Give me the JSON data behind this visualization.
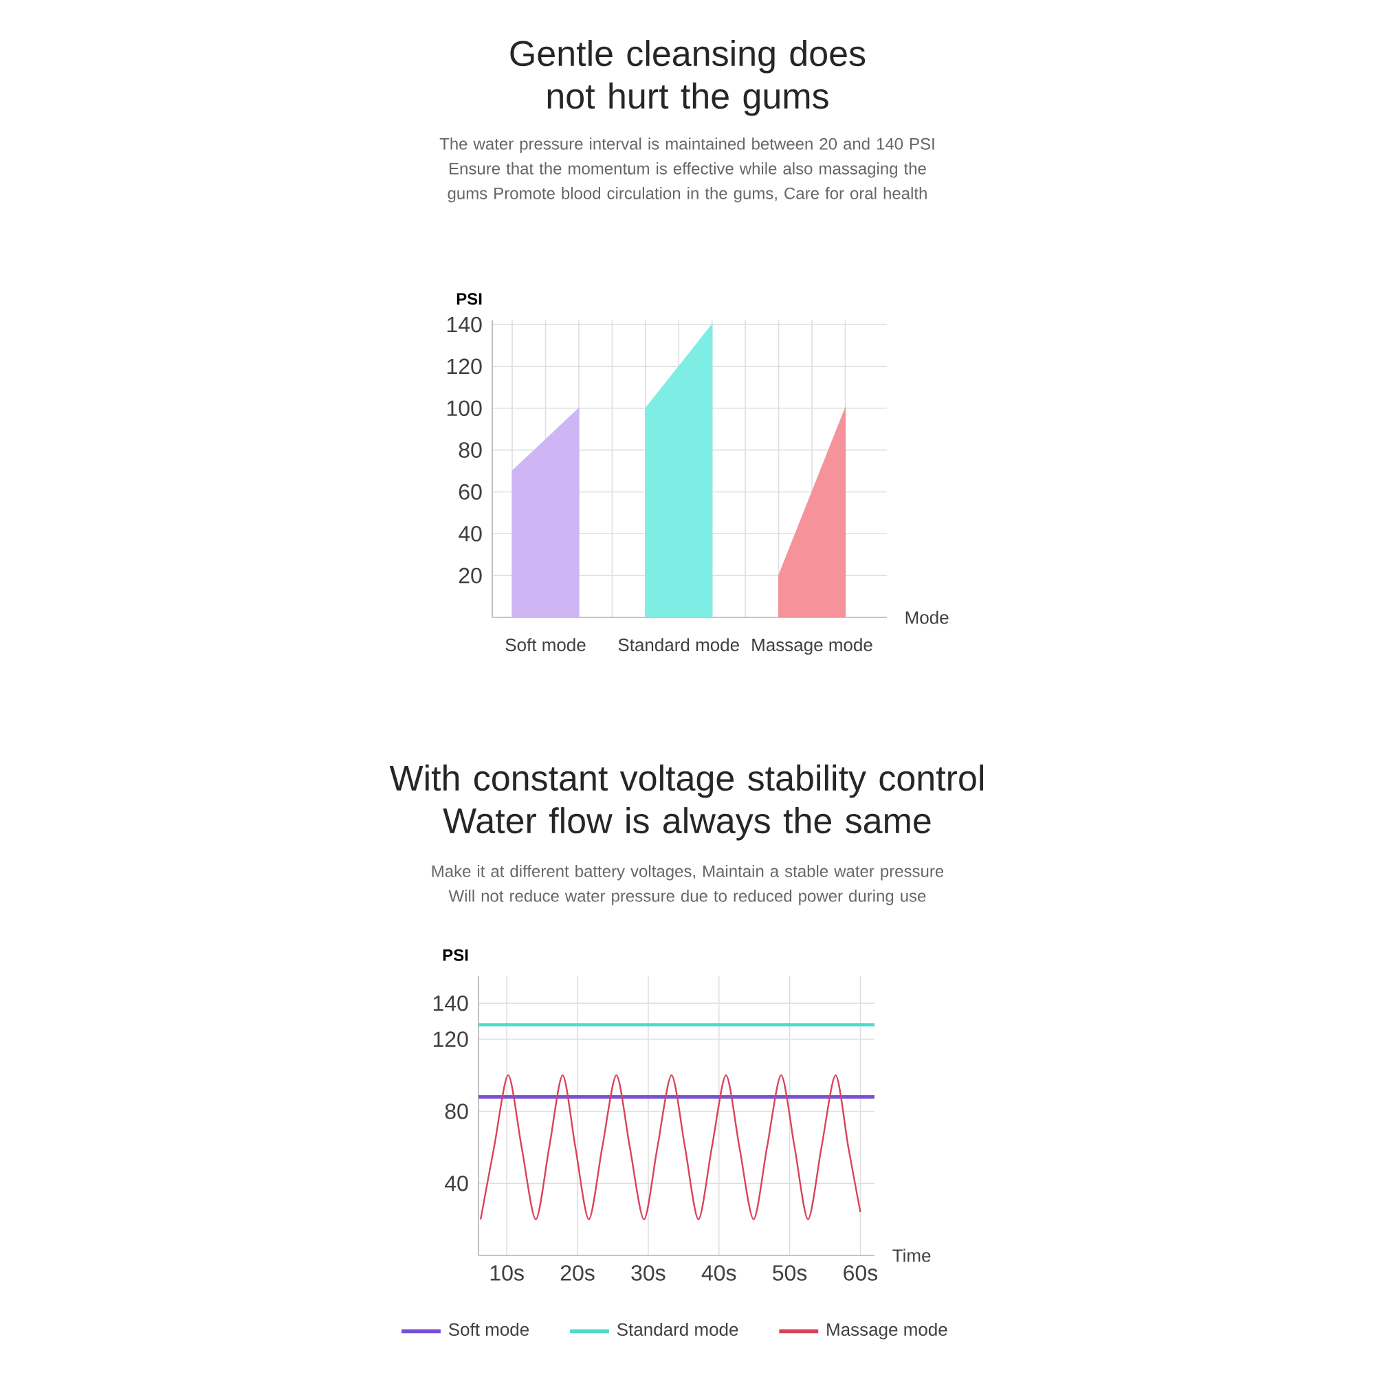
{
  "chart_data": [
    {
      "type": "area",
      "title": "Gentle cleansing does not hurt the gums",
      "subtitle": "The water pressure interval is maintained between 20 and 140 PSI Ensure that the momentum is effective while also massaging the gums Promote blood circulation in the gums, Care for oral health",
      "xlabel": "Mode",
      "ylabel": "PSI",
      "categories": [
        null,
        "Soft mode",
        null,
        null,
        null,
        "Standard mode",
        null,
        null,
        null,
        "Massage mode",
        null
      ],
      "ylim": [
        0,
        142
      ],
      "yticks": [
        20,
        40,
        60,
        80,
        100,
        120,
        140
      ],
      "grid": true,
      "series": [
        {
          "color": "#cdb6f3",
          "values": [
            70,
            85,
            100,
            null,
            null,
            null,
            null,
            null,
            null,
            null,
            null
          ]
        },
        {
          "color": "#7eeee4",
          "values": [
            null,
            null,
            null,
            null,
            100,
            120,
            140,
            null,
            null,
            null,
            null
          ]
        },
        {
          "color": "#f5929a",
          "values": [
            null,
            null,
            null,
            null,
            null,
            null,
            null,
            null,
            20,
            60,
            100
          ]
        }
      ]
    },
    {
      "type": "line",
      "title": "With constant voltage stability control Water flow is always the same",
      "subtitle": "Make it at different battery voltages, Maintain a stable water pressure Will not reduce water pressure due to reduced power during use",
      "xlabel": "Time",
      "ylabel": "PSI",
      "xlim": [
        6,
        62
      ],
      "xticks": [
        {
          "value": 10,
          "label": "10s"
        },
        {
          "value": 20,
          "label": "20s"
        },
        {
          "value": 30,
          "label": "30s"
        },
        {
          "value": 40,
          "label": "40s"
        },
        {
          "value": 50,
          "label": "50s"
        },
        {
          "value": 60,
          "label": "60s"
        }
      ],
      "ylim": [
        0,
        155
      ],
      "yticks": [
        40,
        80,
        120,
        140
      ],
      "grid": true,
      "legend": "bottom",
      "series": [
        {
          "name": "Soft mode",
          "color": "#7a4fd6",
          "x": [
            6,
            62
          ],
          "values": [
            88,
            88
          ]
        },
        {
          "name": "Standard mode",
          "color": "#4fdacd",
          "x": [
            6,
            62
          ],
          "values": [
            128,
            128
          ]
        },
        {
          "name": "Massage mode",
          "color": "#d9435a",
          "x": [
            6.3,
            8.2,
            10.2,
            12.1,
            14.1,
            16,
            17.9,
            19.7,
            21.6,
            23.5,
            25.5,
            27.4,
            29.4,
            31.3,
            33.3,
            35.2,
            37.1,
            39,
            41,
            42.9,
            44.9,
            46.8,
            48.8,
            50.7,
            52.6,
            54.5,
            56.5,
            58.3,
            60
          ],
          "values": [
            20,
            60,
            100,
            60,
            20,
            60,
            100,
            60,
            20,
            60,
            100,
            60,
            20,
            60,
            100,
            60,
            20,
            60,
            100,
            60,
            20,
            60,
            100,
            60,
            20,
            60,
            100,
            60,
            24
          ]
        }
      ]
    }
  ]
}
